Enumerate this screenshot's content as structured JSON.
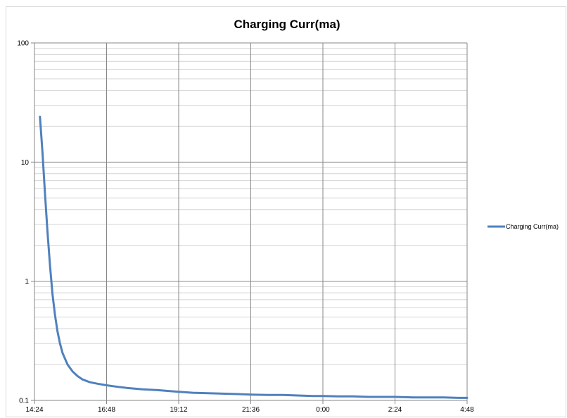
{
  "chart_data": {
    "type": "line",
    "title": "Charging Curr(ma)",
    "xlabel": "",
    "ylabel": "",
    "y_scale": "log",
    "ylim": [
      0.1,
      100
    ],
    "y_ticks": [
      "0.1",
      "1",
      "10",
      "100"
    ],
    "x_ticks": [
      "14:24",
      "16:48",
      "19:12",
      "21:36",
      "0:00",
      "2:24",
      "4:48"
    ],
    "xlim": [
      "14:24",
      "4:48"
    ],
    "grid": true,
    "legend_position": "right",
    "series": [
      {
        "name": "Charging Curr(ma)",
        "color": "#4f81bd",
        "x": [
          "14:35",
          "14:40",
          "14:45",
          "14:50",
          "14:55",
          "15:00",
          "15:05",
          "15:10",
          "15:15",
          "15:20",
          "15:30",
          "15:40",
          "15:50",
          "16:00",
          "16:15",
          "16:30",
          "16:48",
          "17:10",
          "17:30",
          "18:00",
          "18:30",
          "19:12",
          "19:40",
          "20:10",
          "20:40",
          "21:10",
          "21:36",
          "22:10",
          "22:40",
          "23:10",
          "23:40",
          "0:00",
          "0:30",
          "1:00",
          "1:30",
          "2:00",
          "2:24",
          "3:00",
          "3:30",
          "4:00",
          "4:30",
          "4:48"
        ],
        "values": [
          24,
          12,
          5.5,
          2.6,
          1.35,
          0.78,
          0.52,
          0.38,
          0.3,
          0.25,
          0.2,
          0.175,
          0.16,
          0.15,
          0.142,
          0.138,
          0.134,
          0.13,
          0.127,
          0.124,
          0.122,
          0.118,
          0.116,
          0.115,
          0.114,
          0.113,
          0.112,
          0.111,
          0.111,
          0.11,
          0.109,
          0.109,
          0.108,
          0.108,
          0.107,
          0.107,
          0.107,
          0.106,
          0.106,
          0.106,
          0.105,
          0.105
        ]
      }
    ]
  }
}
